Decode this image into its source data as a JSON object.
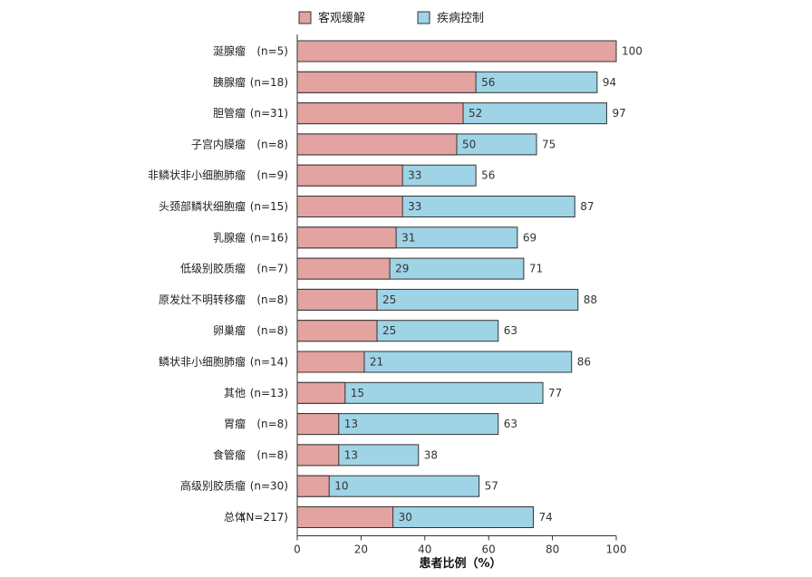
{
  "chart_data": {
    "type": "bar",
    "orientation": "horizontal",
    "layout": "overlay",
    "xlabel": "患者比例（%）",
    "xlim": [
      0,
      100
    ],
    "xticks": [
      0,
      20,
      40,
      60,
      80,
      100
    ],
    "legend_position": "top",
    "series": [
      {
        "name": "客观缓解",
        "color": "#e3a3a0"
      },
      {
        "name": "疾病控制",
        "color": "#9fd3e6"
      }
    ],
    "categories": [
      {
        "label": "涎腺瘤",
        "n": "(n=5)",
        "objective_response": 100,
        "disease_control": 100
      },
      {
        "label": "胰腺瘤",
        "n": "(n=18)",
        "objective_response": 56,
        "disease_control": 94
      },
      {
        "label": "胆管瘤",
        "n": "(n=31)",
        "objective_response": 52,
        "disease_control": 97
      },
      {
        "label": "子宫内膜瘤",
        "n": "(n=8)",
        "objective_response": 50,
        "disease_control": 75
      },
      {
        "label": "非鳞状非小细胞肺瘤",
        "n": "(n=9)",
        "objective_response": 33,
        "disease_control": 56
      },
      {
        "label": "头颈部鳞状细胞瘤",
        "n": "(n=15)",
        "objective_response": 33,
        "disease_control": 87
      },
      {
        "label": "乳腺瘤",
        "n": "(n=16)",
        "objective_response": 31,
        "disease_control": 69
      },
      {
        "label": "低级别胶质瘤",
        "n": "(n=7)",
        "objective_response": 29,
        "disease_control": 71
      },
      {
        "label": "原发灶不明转移瘤",
        "n": "(n=8)",
        "objective_response": 25,
        "disease_control": 88
      },
      {
        "label": "卵巢瘤",
        "n": "(n=8)",
        "objective_response": 25,
        "disease_control": 63
      },
      {
        "label": "鳞状非小细胞肺瘤",
        "n": "(n=14)",
        "objective_response": 21,
        "disease_control": 86
      },
      {
        "label": "其他",
        "n": "(n=13)",
        "objective_response": 15,
        "disease_control": 77
      },
      {
        "label": "胃瘤",
        "n": "(n=8)",
        "objective_response": 13,
        "disease_control": 63
      },
      {
        "label": "食管瘤",
        "n": "(n=8)",
        "objective_response": 13,
        "disease_control": 38
      },
      {
        "label": "高级别胶质瘤",
        "n": "(n=30)",
        "objective_response": 10,
        "disease_control": 57
      },
      {
        "label": "总体",
        "n": "(N=217)",
        "objective_response": 30,
        "disease_control": 74
      }
    ]
  }
}
